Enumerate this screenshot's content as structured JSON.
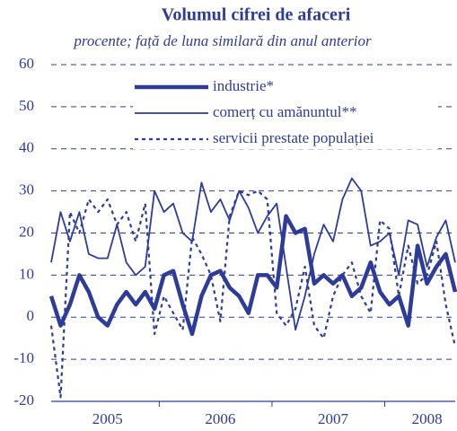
{
  "chart_data": {
    "type": "line",
    "title": "Volumul cifrei de afaceri",
    "subtitle": "procente; față de luna similară din anul anterior",
    "categories": [
      null,
      null,
      null,
      null,
      null,
      null,
      "2005",
      null,
      null,
      null,
      null,
      null,
      null,
      null,
      null,
      null,
      null,
      null,
      "2006",
      null,
      null,
      null,
      null,
      null,
      null,
      null,
      null,
      null,
      null,
      null,
      "2007",
      null,
      null,
      null,
      null,
      null,
      null,
      null,
      null,
      null,
      "2008",
      null,
      null,
      null
    ],
    "series": [
      {
        "name": "industrie*",
        "color": "#2e3c99",
        "style": "thick",
        "values": [
          5,
          -2,
          3,
          10,
          6,
          0,
          -2,
          3,
          6,
          3,
          6,
          2,
          10,
          11,
          3,
          -4,
          5,
          10,
          11,
          7,
          5,
          1,
          10,
          10,
          7,
          24,
          20,
          21,
          8,
          10,
          8,
          10,
          5,
          7,
          13,
          6,
          3,
          5,
          -2,
          17,
          8,
          12,
          15,
          6
        ]
      },
      {
        "name": "comerț cu amănuntul**",
        "color": "#2e3c99",
        "style": "thin",
        "values": [
          13,
          25,
          18,
          25,
          15,
          14,
          14,
          22,
          13,
          10,
          12,
          30,
          25,
          27,
          20,
          18,
          32,
          25,
          28,
          23,
          30,
          26,
          20,
          24,
          27,
          12,
          -3,
          5,
          15,
          22,
          18,
          28,
          33,
          30,
          17,
          18,
          20,
          10,
          23,
          22,
          12,
          19,
          23,
          13
        ]
      },
      {
        "name": "servicii prestate populației",
        "color": "#2e3c99",
        "style": "dotted",
        "values": [
          -2,
          -19,
          25,
          20,
          28,
          25,
          28,
          22,
          25,
          18,
          27,
          -4,
          5,
          1,
          -3,
          19,
          15,
          10,
          -1,
          24,
          30,
          29,
          30,
          28,
          1,
          -2,
          2,
          12,
          -2,
          -5,
          5,
          10,
          13,
          5,
          1,
          23,
          21,
          5,
          17,
          8,
          10,
          18,
          3,
          -7
        ]
      }
    ],
    "ylim": [
      -20,
      60
    ],
    "yticks": [
      -20,
      -10,
      0,
      10,
      20,
      30,
      40,
      50,
      60
    ],
    "grid": true,
    "legend": "top"
  }
}
